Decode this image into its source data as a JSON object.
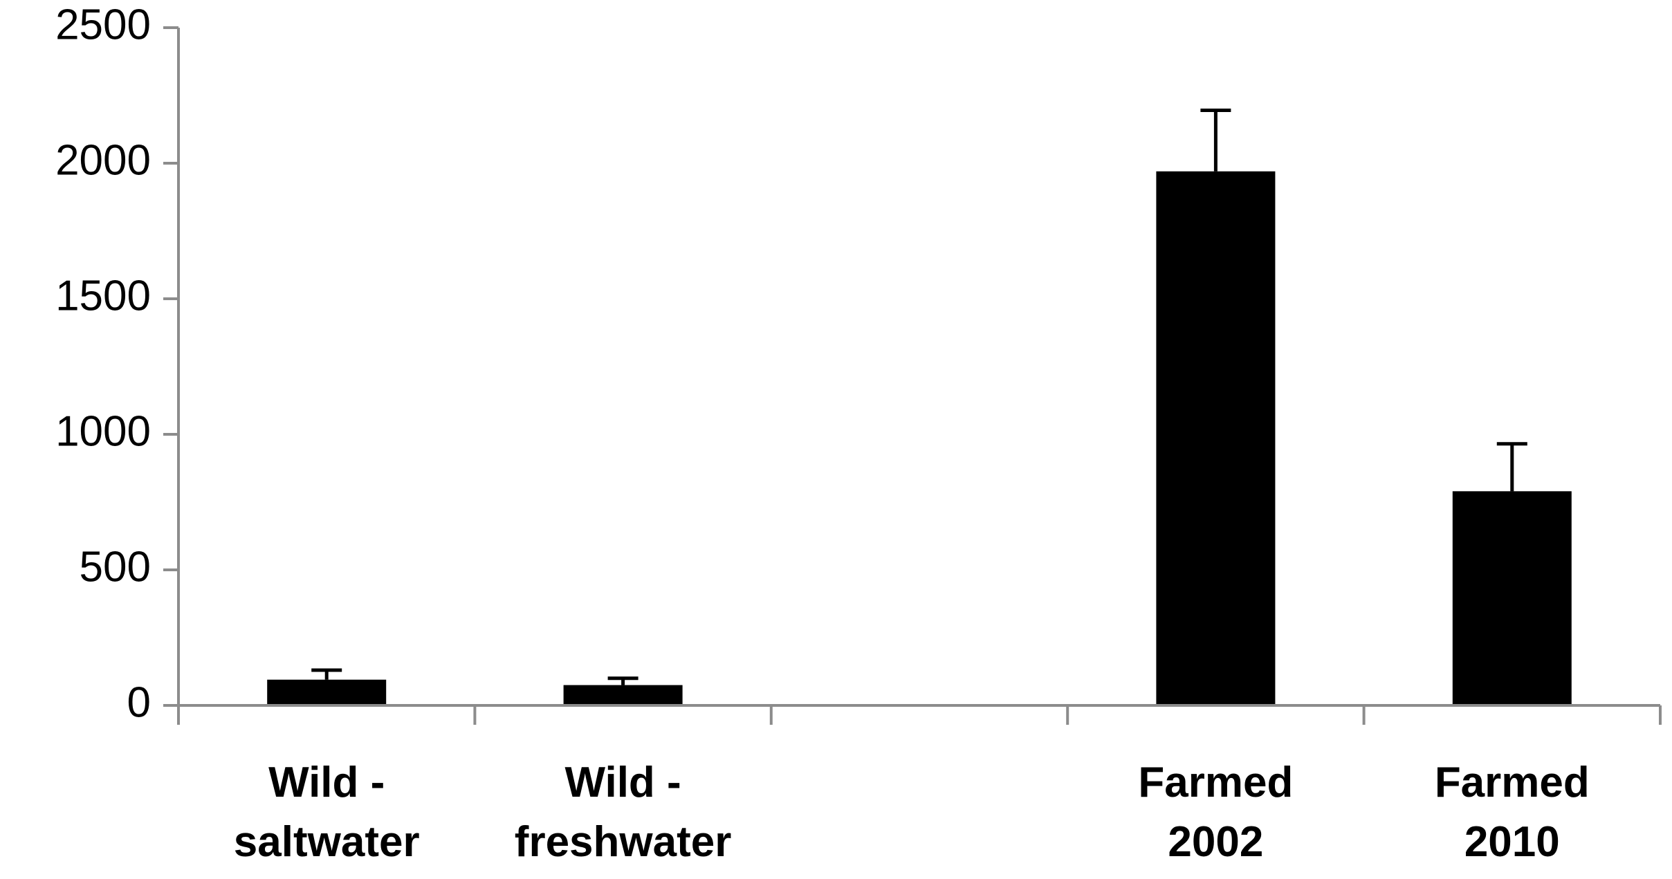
{
  "chart_data": {
    "type": "bar",
    "categories": [
      [
        "Wild -",
        "saltwater"
      ],
      [
        "Wild -",
        "freshwater"
      ],
      [
        "",
        ""
      ],
      [
        "Farmed",
        "2002"
      ],
      [
        "Farmed",
        "2010"
      ]
    ],
    "values": [
      95,
      75,
      null,
      1970,
      790
    ],
    "error_upper": [
      130,
      100,
      null,
      2195,
      965
    ],
    "ylim": [
      0,
      2500
    ],
    "yticks": [
      0,
      500,
      1000,
      1500,
      2000,
      2500
    ],
    "title": "",
    "xlabel": "",
    "ylabel": "",
    "grid": false,
    "legend": "none",
    "colors": {
      "bar": "#000000",
      "axis": "#8c8c8c",
      "error_bar": "#000000",
      "text": "#000000"
    }
  }
}
